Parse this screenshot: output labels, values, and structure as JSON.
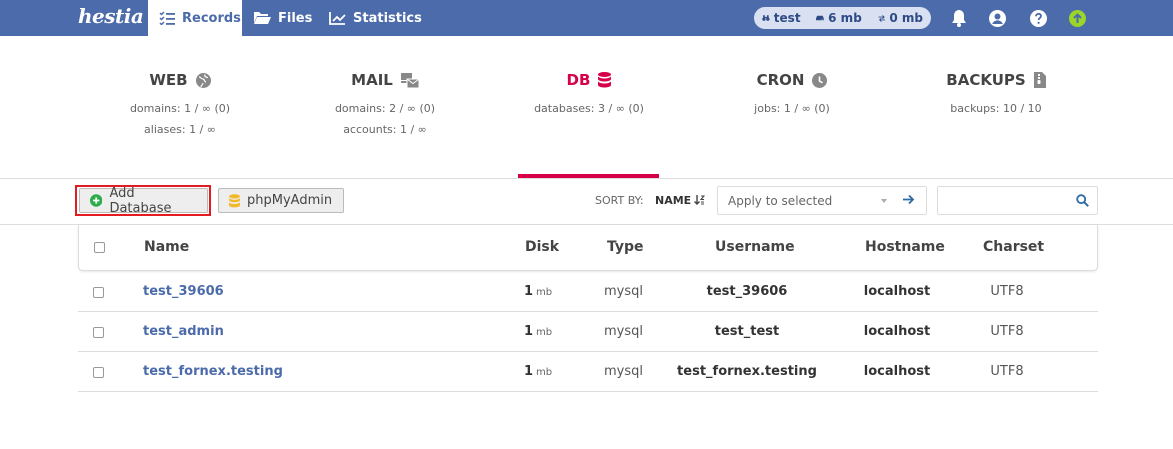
{
  "app": {
    "logo": "hestia"
  },
  "nav": {
    "tabs": [
      {
        "label": "Records"
      },
      {
        "label": "Files"
      },
      {
        "label": "Statistics"
      }
    ]
  },
  "user": {
    "name": "test",
    "disk": "6 mb",
    "bandwidth": "0 mb"
  },
  "stats": [
    {
      "title": "WEB",
      "line1": "domains: 1 / ∞ (0)",
      "line2": "aliases: 1 / ∞"
    },
    {
      "title": "MAIL",
      "line1": "domains: 2 / ∞ (0)",
      "line2": "accounts: 1 / ∞"
    },
    {
      "title": "DB",
      "line1": "databases: 3 / ∞ (0)",
      "line2": ""
    },
    {
      "title": "CRON",
      "line1": "jobs: 1 / ∞ (0)",
      "line2": ""
    },
    {
      "title": "BACKUPS",
      "line1": "backups: 10 / 10",
      "line2": ""
    }
  ],
  "toolbar": {
    "add_label": "Add Database",
    "phpmyadmin_label": "phpMyAdmin",
    "sort_by_label": "SORT BY:",
    "sort_name": "NAME",
    "apply_placeholder": "Apply to selected"
  },
  "table": {
    "headers": [
      "Name",
      "Disk",
      "Type",
      "Username",
      "Hostname",
      "Charset"
    ],
    "rows": [
      {
        "name": "test_39606",
        "disk": "1",
        "disk_unit": "mb",
        "type": "mysql",
        "username": "test_39606",
        "hostname": "localhost",
        "charset": "UTF8"
      },
      {
        "name": "test_admin",
        "disk": "1",
        "disk_unit": "mb",
        "type": "mysql",
        "username": "test_test",
        "hostname": "localhost",
        "charset": "UTF8"
      },
      {
        "name": "test_fornex.testing",
        "disk": "1",
        "disk_unit": "mb",
        "type": "mysql",
        "username": "test_fornex.testing",
        "hostname": "localhost",
        "charset": "UTF8"
      }
    ]
  },
  "colors": {
    "topbar": "#4b6baa",
    "accent": "#d6004b",
    "link": "#4b6baa",
    "highlight": "#e31b23",
    "add_icon": "#2eab4a",
    "db_icon": "#f2b92d",
    "upgrade": "#9bd52a"
  }
}
